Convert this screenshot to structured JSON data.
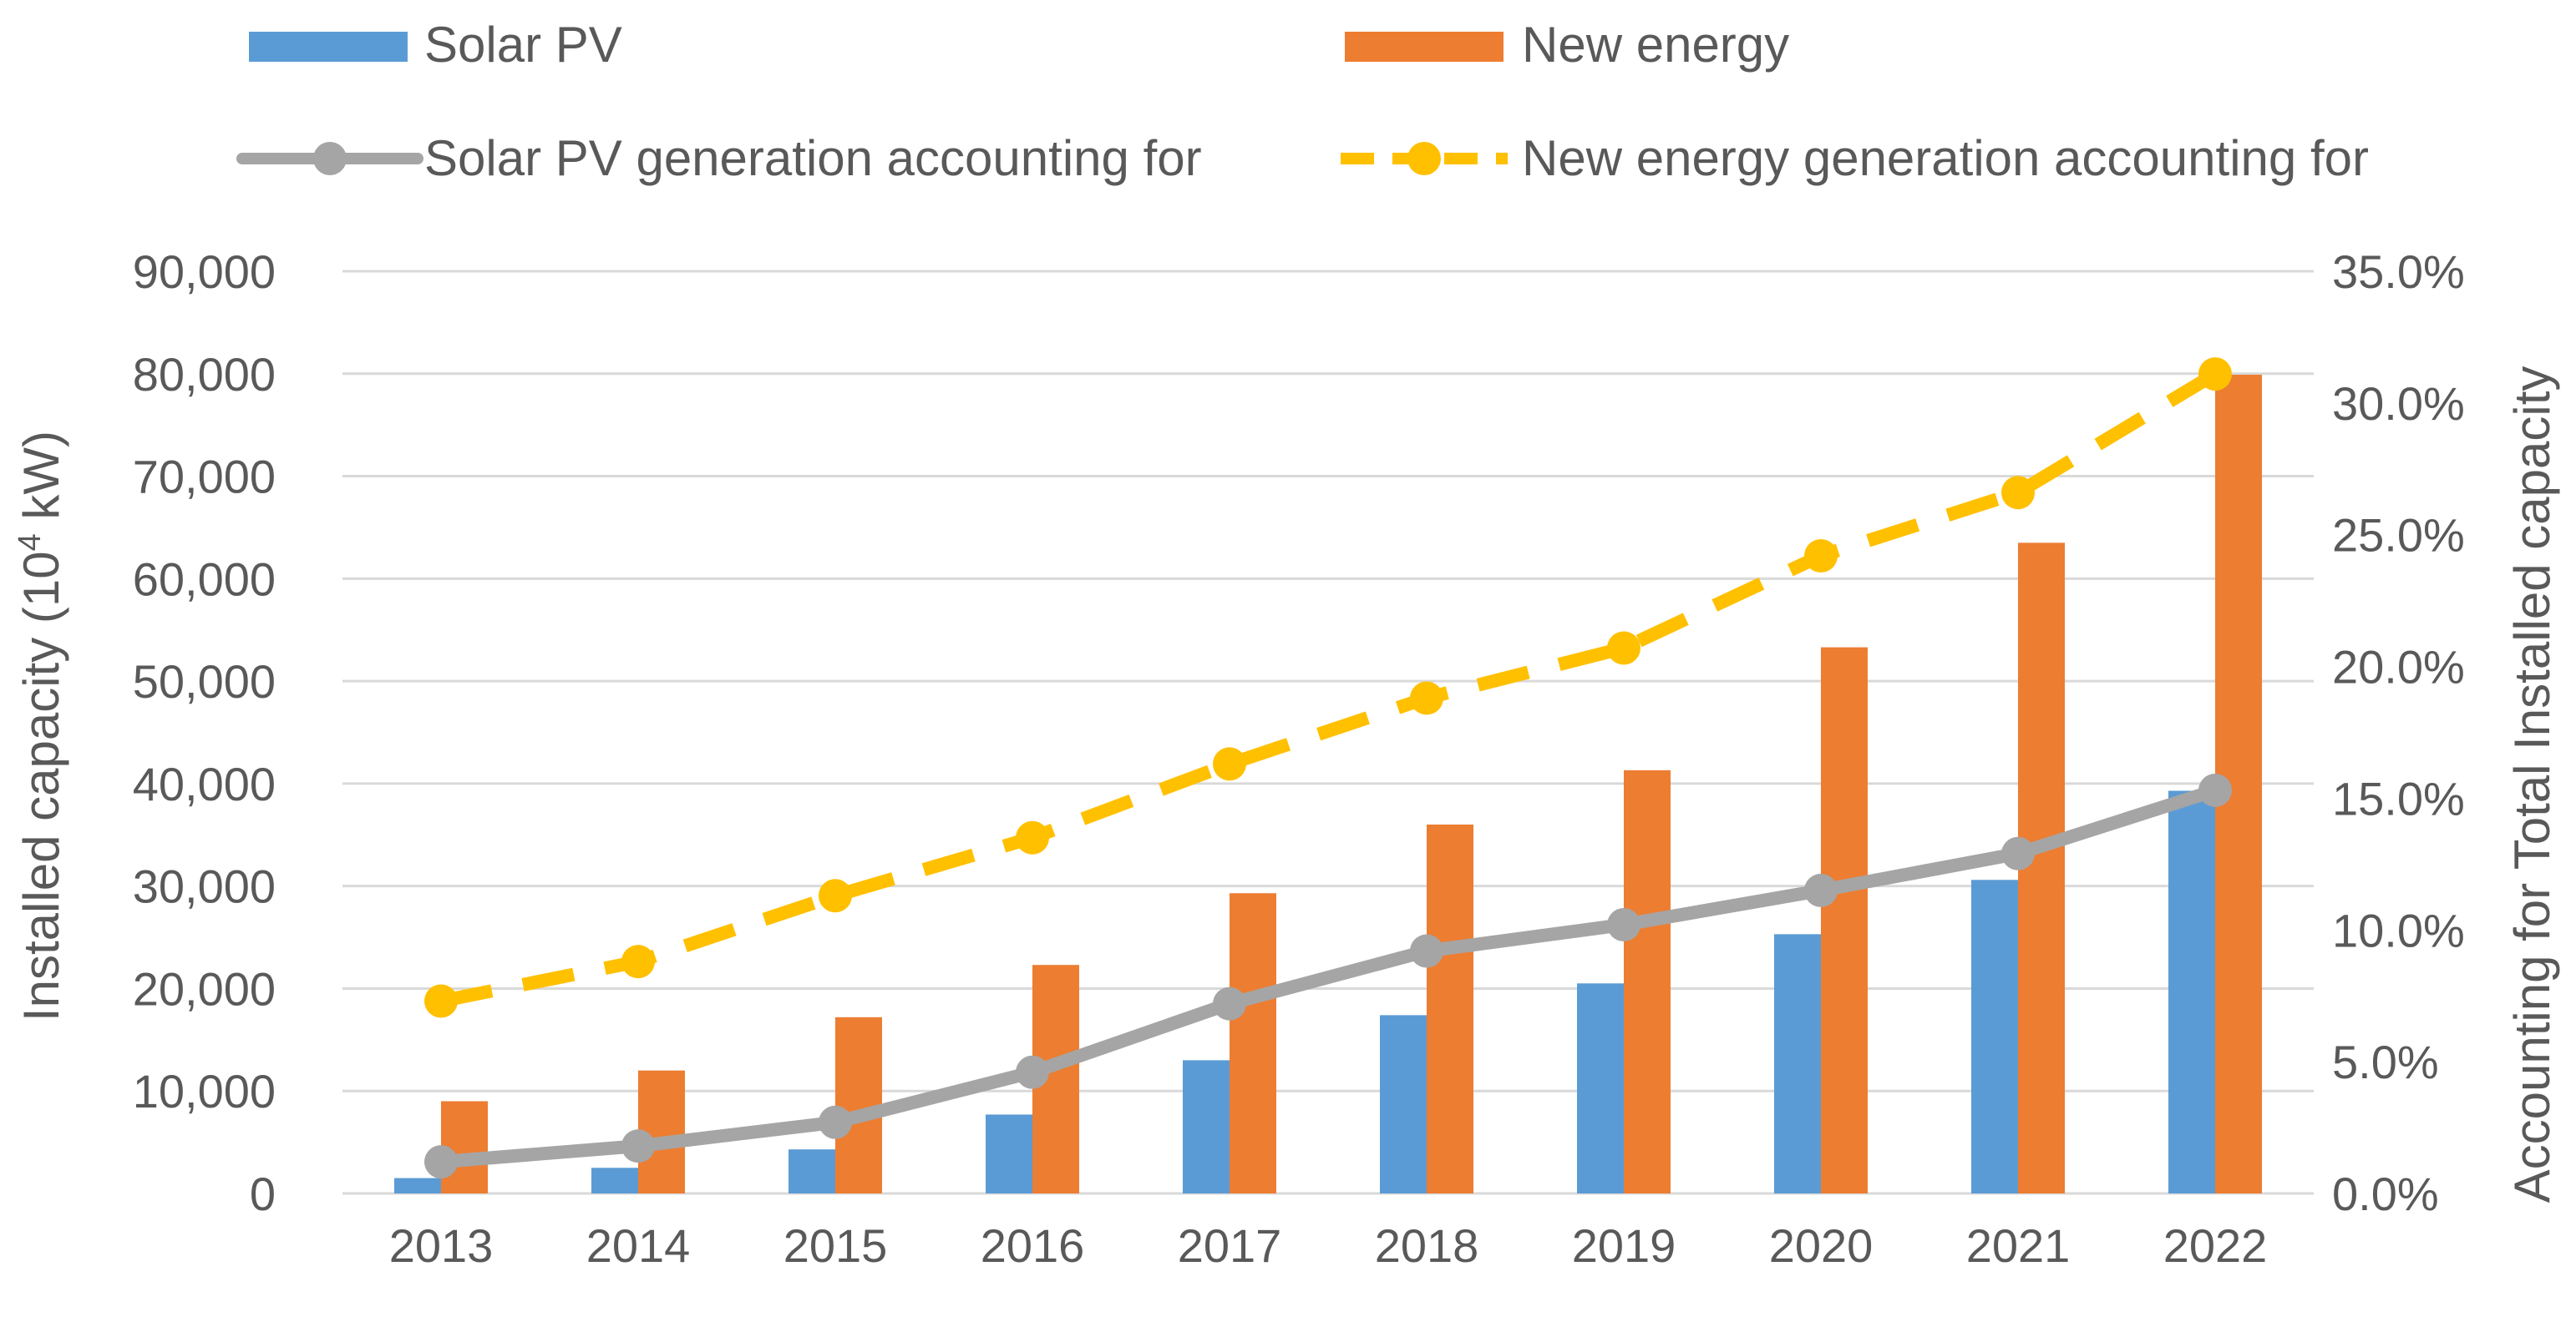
{
  "chart_data": {
    "type": "bar",
    "categories": [
      "2013",
      "2014",
      "2015",
      "2016",
      "2017",
      "2018",
      "2019",
      "2020",
      "2021",
      "2022"
    ],
    "series": [
      {
        "name": "Solar PV",
        "kind": "bar",
        "axis": "left",
        "color": "#5B9BD5",
        "values": [
          1500,
          2500,
          4300,
          7700,
          13000,
          17400,
          20500,
          25300,
          30600,
          39300
        ]
      },
      {
        "name": "New energy",
        "kind": "bar",
        "axis": "left",
        "color": "#ED7D31",
        "values": [
          9000,
          12000,
          17200,
          22300,
          29300,
          36000,
          41300,
          53300,
          63500,
          79900
        ]
      },
      {
        "name": "Solar PV generation accounting for",
        "kind": "line",
        "axis": "right",
        "color": "#A5A5A5",
        "values": [
          1.2,
          1.8,
          2.7,
          4.6,
          7.2,
          9.2,
          10.2,
          11.5,
          12.9,
          15.3
        ]
      },
      {
        "name": "New energy generation accounting for",
        "kind": "line-dashed",
        "axis": "right",
        "color": "#FFC000",
        "values": [
          7.3,
          8.8,
          11.3,
          13.5,
          16.3,
          18.8,
          20.7,
          24.2,
          26.6,
          31.1
        ]
      }
    ],
    "y_left": {
      "label_main": "Installed capacity (10",
      "label_sup": "4",
      "label_end": " kW)",
      "ylim": [
        0,
        90000
      ],
      "step": 10000,
      "tick_labels": [
        "0",
        "10,000",
        "20,000",
        "30,000",
        "40,000",
        "50,000",
        "60,000",
        "70,000",
        "80,000",
        "90,000"
      ]
    },
    "y_right": {
      "label": "Accounting for Total Installed capacity",
      "ylim": [
        0,
        35
      ],
      "step": 5,
      "tick_labels": [
        "0.0%",
        "5.0%",
        "10.0%",
        "15.0%",
        "20.0%",
        "25.0%",
        "30.0%",
        "35.0%"
      ]
    },
    "grid": true,
    "legend_position": "top"
  }
}
